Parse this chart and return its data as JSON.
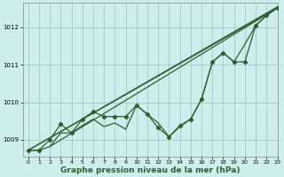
{
  "xlabel": "Graphe pression niveau de la mer (hPa)",
  "background_color": "#ceeeed",
  "grid_color": "#aacfcf",
  "line_color": "#2d5f2d",
  "xlim": [
    -0.5,
    23
  ],
  "ylim": [
    1008.55,
    1012.65
  ],
  "yticks": [
    1009,
    1010,
    1011,
    1012
  ],
  "xticks": [
    0,
    1,
    2,
    3,
    4,
    5,
    6,
    7,
    8,
    9,
    10,
    11,
    12,
    13,
    14,
    15,
    16,
    17,
    18,
    19,
    20,
    21,
    22,
    23
  ],
  "straight_lines": [
    [
      [
        0,
        23
      ],
      [
        1008.72,
        1012.55
      ]
    ],
    [
      [
        0,
        23
      ],
      [
        1008.72,
        1012.52
      ]
    ],
    [
      [
        2,
        23
      ],
      [
        1008.82,
        1012.52
      ]
    ]
  ],
  "zigzag": [
    0,
    1,
    2,
    3,
    4,
    5,
    6,
    7,
    8,
    9,
    10,
    11,
    12,
    13,
    14,
    15,
    16,
    17,
    18,
    19,
    20,
    21,
    22,
    23
  ],
  "zigzag_y": [
    1008.72,
    1008.72,
    1009.0,
    1009.42,
    1009.18,
    1009.55,
    1009.75,
    1009.62,
    1009.62,
    1009.62,
    1009.92,
    1009.68,
    1009.32,
    1009.08,
    1009.38,
    1009.55,
    1010.08,
    1011.08,
    1011.32,
    1011.08,
    1011.08,
    1012.05,
    1012.32,
    1012.52
  ],
  "zigzag_y2": [
    1008.72,
    1008.72,
    1008.82,
    1009.18,
    1009.18,
    1009.38,
    1009.55,
    1009.35,
    1009.45,
    1009.28,
    1009.92,
    1009.68,
    1009.45,
    1009.08,
    1009.35,
    1009.55,
    1010.08,
    1011.08,
    1011.32,
    1011.08,
    1011.55,
    1012.05,
    1012.32,
    1012.52
  ]
}
